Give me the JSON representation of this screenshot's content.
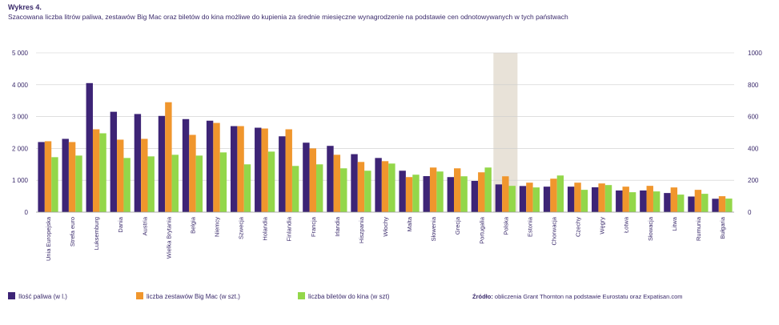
{
  "header": {
    "label": "Wykres 4.",
    "title": "Szacowana liczba litrów paliwa, zestawów Big Mac oraz biletów do kina możliwe do kupienia za średnie miesięczne wynagrodzenie na podstawie cen odnotowywanych w tych państwach"
  },
  "source": {
    "label": "Źródło:",
    "text": "obliczenia Grant Thornton na podstawie Eurostatu oraz Expatisan.com"
  },
  "colors": {
    "fuel": "#3d2476",
    "bigmac": "#f0962d",
    "cinema": "#93d74a",
    "highlight": "#e8e2d8",
    "grid": "#cccccc",
    "text": "#3a2a6b"
  },
  "chart_data": {
    "type": "bar",
    "categories": [
      "Unia Europejska",
      "Strefa euro",
      "Luksemburg",
      "Dania",
      "Austria",
      "Wielka Brytania",
      "Belgia",
      "Niemcy",
      "Szwecja",
      "Holandia",
      "Finlandia",
      "Francja",
      "Irlandia",
      "Hiszpania",
      "Włochy",
      "Malta",
      "Słowenia",
      "Grecja",
      "Portugalia",
      "Polska",
      "Estonia",
      "Chorwacja",
      "Czechy",
      "Węgry",
      "Łotwa",
      "Słowacja",
      "Litwa",
      "Rumunia",
      "Bułgaria"
    ],
    "highlight_category": "Polska",
    "series": [
      {
        "name": "Ilość paliwa (w l.)",
        "axis": "left",
        "values": [
          2200,
          2300,
          4050,
          3150,
          3080,
          3020,
          2920,
          2870,
          2700,
          2650,
          2380,
          2180,
          2080,
          1820,
          1700,
          1300,
          1130,
          1100,
          980,
          870,
          820,
          800,
          800,
          780,
          680,
          680,
          600,
          490,
          420
        ]
      },
      {
        "name": "liczba zestawów Big Mac (w szt.)",
        "axis": "right",
        "values": [
          445,
          440,
          520,
          455,
          460,
          690,
          485,
          560,
          540,
          525,
          520,
          400,
          360,
          315,
          320,
          220,
          280,
          275,
          250,
          225,
          185,
          210,
          185,
          180,
          160,
          165,
          155,
          140,
          100
        ]
      },
      {
        "name": "liczba biletów do kina (w szt)",
        "axis": "right",
        "values": [
          345,
          355,
          495,
          340,
          350,
          360,
          355,
          375,
          300,
          380,
          290,
          300,
          275,
          260,
          305,
          235,
          255,
          225,
          280,
          165,
          155,
          230,
          140,
          170,
          125,
          130,
          110,
          115,
          85
        ]
      }
    ],
    "y_left": {
      "min": 0,
      "max": 5000,
      "ticks": [
        0,
        1000,
        2000,
        3000,
        4000,
        5000
      ],
      "tick_labels": [
        "0",
        "1 000",
        "2 000",
        "3 000",
        "4 000",
        "5 000"
      ]
    },
    "y_right": {
      "min": 0,
      "max": 1000,
      "ticks": [
        0,
        200,
        400,
        600,
        800,
        1000
      ],
      "tick_labels": [
        "0",
        "200",
        "400",
        "600",
        "800",
        "1000"
      ]
    },
    "grid": true,
    "legend_position": "bottom-left"
  }
}
